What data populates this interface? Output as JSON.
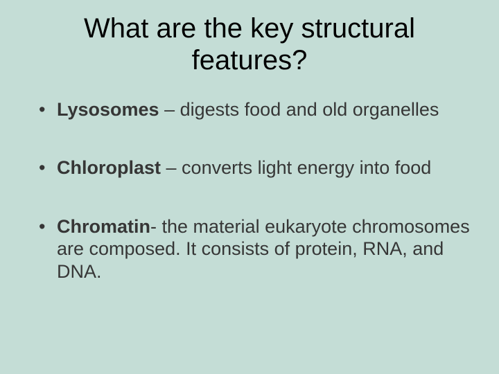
{
  "slide": {
    "background_color": "#c4ddd6",
    "title": {
      "text": "What are the key structural features?",
      "fontsize": 40,
      "color": "#000000",
      "align": "center"
    },
    "bullets": [
      {
        "term": "Lysosomes",
        "separator": " – ",
        "definition": "digests food and old organelles"
      },
      {
        "term": "Chloroplast",
        "separator": " – ",
        "definition": "converts light energy into food"
      },
      {
        "term": "Chromatin",
        "separator": "- ",
        "definition": "the material eukaryote chromosomes are composed. It consists of protein, RNA, and DNA."
      }
    ],
    "body_fontsize": 27,
    "body_color": "#363636"
  }
}
